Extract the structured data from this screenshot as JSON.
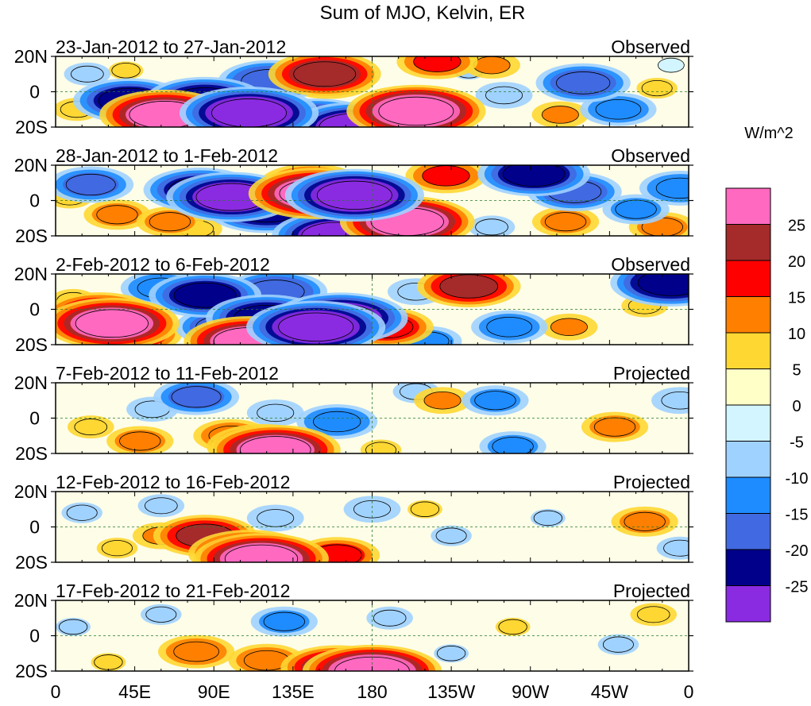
{
  "chart_data": {
    "type": "heatmap",
    "title": "Sum of MJO, Kelvin, ER",
    "xlabel": "",
    "ylabel": "",
    "x_ticks": [
      "0",
      "45E",
      "90E",
      "135E",
      "180",
      "135W",
      "90W",
      "45W",
      "0"
    ],
    "x_tick_values": [
      0,
      45,
      90,
      135,
      180,
      225,
      270,
      315,
      360
    ],
    "y_ticks": [
      "20N",
      "0",
      "20S"
    ],
    "y_tick_values": [
      20,
      0,
      -20
    ],
    "xlim": [
      0,
      360
    ],
    "ylim": [
      -20,
      20
    ],
    "colorbar": {
      "unit": "W/m^2",
      "levels": [
        25,
        20,
        15,
        10,
        5,
        0,
        -5,
        -10,
        -15,
        -20,
        -25
      ],
      "colors": [
        "#ff69c0",
        "#a52a2a",
        "#ff0000",
        "#ff7f00",
        "#ffd732",
        "#ffffc8",
        "#d2f5ff",
        "#a0d2ff",
        "#1e8cff",
        "#4169e1",
        "#00008b",
        "#8a2be2"
      ]
    },
    "panels": [
      {
        "period": "23-Jan-2012 to 27-Jan-2012",
        "status": "Observed",
        "anomalies": [
          {
            "lon": 62,
            "lat": -13,
            "value": 26
          },
          {
            "lon": 155,
            "lat": 7,
            "value": 18
          },
          {
            "lon": 153,
            "lat": 10,
            "value": 22
          },
          {
            "lon": 205,
            "lat": -11,
            "value": 28
          },
          {
            "lon": 217,
            "lat": 17,
            "value": 15
          },
          {
            "lon": 248,
            "lat": 15,
            "value": 10
          },
          {
            "lon": 287,
            "lat": -13,
            "value": 10
          },
          {
            "lon": 342,
            "lat": 2,
            "value": 7
          },
          {
            "lon": 12,
            "lat": -10,
            "value": 8
          },
          {
            "lon": 40,
            "lat": 12,
            "value": 6
          },
          {
            "lon": 110,
            "lat": -12,
            "value": -28
          },
          {
            "lon": 85,
            "lat": -5,
            "value": -24
          },
          {
            "lon": 148,
            "lat": -18,
            "value": -26
          },
          {
            "lon": 42,
            "lat": -5,
            "value": -22
          },
          {
            "lon": 122,
            "lat": 6,
            "value": -20
          },
          {
            "lon": 170,
            "lat": -20,
            "value": -26
          },
          {
            "lon": 255,
            "lat": -2,
            "value": -10
          },
          {
            "lon": 300,
            "lat": 5,
            "value": -18
          },
          {
            "lon": 320,
            "lat": -10,
            "value": -14
          },
          {
            "lon": 235,
            "lat": 12,
            "value": -6
          },
          {
            "lon": 18,
            "lat": 10,
            "value": -8
          },
          {
            "lon": 350,
            "lat": 15,
            "value": -5
          }
        ]
      },
      {
        "period": "28-Jan-2012 to 1-Feb-2012",
        "status": "Observed",
        "anomalies": [
          {
            "lon": 148,
            "lat": 4,
            "value": 27
          },
          {
            "lon": 145,
            "lat": 9,
            "value": 20
          },
          {
            "lon": 200,
            "lat": -12,
            "value": 27
          },
          {
            "lon": 222,
            "lat": 14,
            "value": 15
          },
          {
            "lon": 35,
            "lat": -8,
            "value": 12
          },
          {
            "lon": 65,
            "lat": -12,
            "value": 12
          },
          {
            "lon": 80,
            "lat": -16,
            "value": 9
          },
          {
            "lon": 290,
            "lat": -12,
            "value": 12
          },
          {
            "lon": 345,
            "lat": -15,
            "value": 12
          },
          {
            "lon": 8,
            "lat": 2,
            "value": 8
          },
          {
            "lon": 100,
            "lat": 2,
            "value": -26
          },
          {
            "lon": 82,
            "lat": 6,
            "value": -22
          },
          {
            "lon": 120,
            "lat": -5,
            "value": -24
          },
          {
            "lon": 170,
            "lat": 3,
            "value": -28
          },
          {
            "lon": 160,
            "lat": -20,
            "value": -26
          },
          {
            "lon": 272,
            "lat": 15,
            "value": -22
          },
          {
            "lon": 295,
            "lat": 5,
            "value": -18
          },
          {
            "lon": 20,
            "lat": 9,
            "value": -16
          },
          {
            "lon": 355,
            "lat": 7,
            "value": -15
          },
          {
            "lon": 248,
            "lat": -15,
            "value": -8
          },
          {
            "lon": 330,
            "lat": -5,
            "value": -12
          }
        ]
      },
      {
        "period": "2-Feb-2012 to 6-Feb-2012",
        "status": "Observed",
        "anomalies": [
          {
            "lon": 32,
            "lat": -8,
            "value": 27
          },
          {
            "lon": 25,
            "lat": -3,
            "value": 22
          },
          {
            "lon": 45,
            "lat": -14,
            "value": 18
          },
          {
            "lon": 110,
            "lat": -18,
            "value": 26
          },
          {
            "lon": 235,
            "lat": 13,
            "value": 20
          },
          {
            "lon": 188,
            "lat": -10,
            "value": 18
          },
          {
            "lon": 292,
            "lat": -10,
            "value": 10
          },
          {
            "lon": 335,
            "lat": 2,
            "value": 8
          },
          {
            "lon": 10,
            "lat": 5,
            "value": 8
          },
          {
            "lon": 148,
            "lat": -10,
            "value": -28
          },
          {
            "lon": 120,
            "lat": -5,
            "value": -24
          },
          {
            "lon": 162,
            "lat": -5,
            "value": -27
          },
          {
            "lon": 125,
            "lat": 10,
            "value": -20
          },
          {
            "lon": 85,
            "lat": 8,
            "value": -22
          },
          {
            "lon": 95,
            "lat": -10,
            "value": -18
          },
          {
            "lon": 60,
            "lat": 12,
            "value": -15
          },
          {
            "lon": 350,
            "lat": 15,
            "value": -24
          },
          {
            "lon": 258,
            "lat": -10,
            "value": -14
          },
          {
            "lon": 212,
            "lat": -18,
            "value": -12
          },
          {
            "lon": 205,
            "lat": 10,
            "value": -10
          }
        ]
      },
      {
        "period": "7-Feb-2012 to 11-Feb-2012",
        "status": "Projected",
        "anomalies": [
          {
            "lon": 100,
            "lat": -10,
            "value": 14
          },
          {
            "lon": 118,
            "lat": -16,
            "value": 22
          },
          {
            "lon": 125,
            "lat": -18,
            "value": 26
          },
          {
            "lon": 48,
            "lat": -13,
            "value": 12
          },
          {
            "lon": 20,
            "lat": -5,
            "value": 8
          },
          {
            "lon": 220,
            "lat": 10,
            "value": 10
          },
          {
            "lon": 318,
            "lat": -5,
            "value": 12
          },
          {
            "lon": 185,
            "lat": -18,
            "value": 7
          },
          {
            "lon": 160,
            "lat": -2,
            "value": -15
          },
          {
            "lon": 125,
            "lat": 3,
            "value": -10
          },
          {
            "lon": 80,
            "lat": 12,
            "value": -16
          },
          {
            "lon": 205,
            "lat": 15,
            "value": -8
          },
          {
            "lon": 250,
            "lat": 10,
            "value": -12
          },
          {
            "lon": 260,
            "lat": -16,
            "value": -12
          },
          {
            "lon": 55,
            "lat": 5,
            "value": -9
          },
          {
            "lon": 355,
            "lat": 10,
            "value": -10
          }
        ]
      },
      {
        "period": "12-Feb-2012 to 16-Feb-2012",
        "status": "Projected",
        "anomalies": [
          {
            "lon": 85,
            "lat": -5,
            "value": 20
          },
          {
            "lon": 110,
            "lat": -15,
            "value": 24
          },
          {
            "lon": 117,
            "lat": -18,
            "value": 27
          },
          {
            "lon": 160,
            "lat": -16,
            "value": 16
          },
          {
            "lon": 60,
            "lat": -5,
            "value": 10
          },
          {
            "lon": 335,
            "lat": 3,
            "value": 12
          },
          {
            "lon": 210,
            "lat": 10,
            "value": 6
          },
          {
            "lon": 35,
            "lat": -12,
            "value": 7
          },
          {
            "lon": 125,
            "lat": 5,
            "value": -10
          },
          {
            "lon": 180,
            "lat": 10,
            "value": -10
          },
          {
            "lon": 60,
            "lat": 12,
            "value": -8
          },
          {
            "lon": 225,
            "lat": -5,
            "value": -7
          },
          {
            "lon": 280,
            "lat": 5,
            "value": -6
          },
          {
            "lon": 355,
            "lat": -12,
            "value": -8
          },
          {
            "lon": 15,
            "lat": 8,
            "value": -7
          }
        ]
      },
      {
        "period": "17-Feb-2012 to 21-Feb-2012",
        "status": "Projected",
        "anomalies": [
          {
            "lon": 80,
            "lat": -9,
            "value": 14
          },
          {
            "lon": 120,
            "lat": -14,
            "value": 14
          },
          {
            "lon": 160,
            "lat": -18,
            "value": 22
          },
          {
            "lon": 180,
            "lat": -20,
            "value": 28
          },
          {
            "lon": 340,
            "lat": 12,
            "value": 8
          },
          {
            "lon": 260,
            "lat": 5,
            "value": 6
          },
          {
            "lon": 30,
            "lat": -15,
            "value": 6
          },
          {
            "lon": 130,
            "lat": 8,
            "value": -12
          },
          {
            "lon": 190,
            "lat": 10,
            "value": -8
          },
          {
            "lon": 60,
            "lat": 12,
            "value": -7
          },
          {
            "lon": 320,
            "lat": -5,
            "value": -7
          },
          {
            "lon": 225,
            "lat": -10,
            "value": -6
          },
          {
            "lon": 10,
            "lat": 5,
            "value": -6
          }
        ]
      }
    ]
  }
}
